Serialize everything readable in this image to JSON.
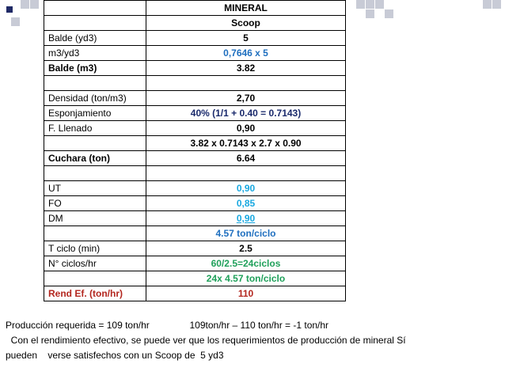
{
  "table": {
    "header": "MINERAL",
    "equipment": "Scoop",
    "rows": [
      {
        "label": "Balde (yd3)",
        "value": "5"
      },
      {
        "label": "m3/yd3",
        "value": "0,7646 x  5"
      },
      {
        "label": "Balde (m3)",
        "value": "3.82"
      },
      {
        "label": "",
        "value": ""
      },
      {
        "label": "Densidad (ton/m3)",
        "value": "2,70"
      },
      {
        "label": "Esponjamiento",
        "value": "40%   (1/1 + 0.40 = 0.7143)"
      },
      {
        "label": "F. Llenado",
        "value": "0,90"
      },
      {
        "label": "",
        "value": "3.82 x 0.7143 x 2.7 x 0.90"
      },
      {
        "label": "Cuchara (ton)",
        "value": "6.64"
      },
      {
        "label": "",
        "value": ""
      },
      {
        "label": "UT",
        "value": "0,90"
      },
      {
        "label": "FO",
        "value": "0,85"
      },
      {
        "label": "DM",
        "value": "0,90"
      },
      {
        "label": "",
        "value": "4.57 ton/ciclo"
      },
      {
        "label": "T ciclo (min)",
        "value": "2.5"
      },
      {
        "label": "N° ciclos/hr",
        "value": "60/2.5=24ciclos"
      },
      {
        "label": "",
        "value": "24x 4.57 ton/ciclo"
      },
      {
        "label": "Rend Ef. (ton/hr)",
        "value": "110"
      }
    ]
  },
  "notes": {
    "line1_a": "Producción requerida =  109 ton/hr",
    "line1_b": "109ton/hr – 110 ton/hr =  -1 ton/hr",
    "line2": "  Con el rendimiento efectivo, se puede ver que los requerimientos de producción de mineral Sí",
    "line3": "pueden    verse satisfechos con un Scoop de  5 yd3"
  },
  "colors": {
    "blue": "#1f6fbf",
    "cyan": "#19a8e0",
    "green": "#1fa05a",
    "red": "#b3261e"
  }
}
